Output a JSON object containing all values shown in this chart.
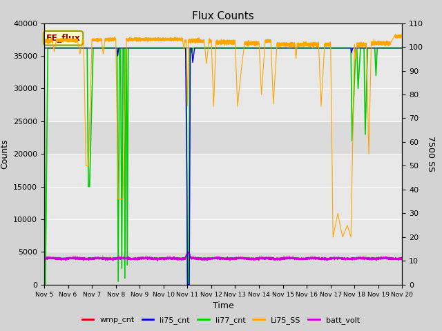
{
  "title": "Flux Counts",
  "xlabel": "Time",
  "ylabel_left": "Counts",
  "ylabel_right": "7500 SS",
  "annotation_text": "EE_flux",
  "ylim_left": [
    0,
    40000
  ],
  "ylim_right": [
    0,
    110
  ],
  "left_yticks": [
    0,
    5000,
    10000,
    15000,
    20000,
    25000,
    30000,
    35000,
    40000
  ],
  "right_yticks": [
    0,
    10,
    20,
    30,
    40,
    50,
    60,
    70,
    80,
    90,
    100,
    110
  ],
  "xtick_positions": [
    5,
    6,
    7,
    8,
    9,
    10,
    11,
    12,
    13,
    14,
    15,
    16,
    17,
    18,
    19,
    20
  ],
  "xtick_labels": [
    "Nov 5",
    "Nov 6",
    "Nov 7",
    "Nov 8",
    "Nov 9",
    "Nov 10",
    "Nov 11",
    "Nov 12",
    "Nov 13",
    "Nov 14",
    "Nov 15",
    "Nov 16",
    "Nov 17",
    "Nov 18",
    "Nov 19",
    "Nov 20"
  ],
  "xlim": [
    5,
    20
  ],
  "fig_bg_color": "#d3d3d3",
  "plot_bg_color": "#e8e8e8",
  "alt_bg_color": "#c8c8c8",
  "colors": {
    "wmp_cnt": "#cc0000",
    "li75_cnt": "#0000cc",
    "li77_cnt": "#00cc00",
    "Li75_SS": "#ffa500",
    "batt_volt": "#cc00cc"
  },
  "legend_labels": [
    "wmp_cnt",
    "li75_cnt",
    "li77_cnt",
    "Li75_SS",
    "batt_volt"
  ]
}
